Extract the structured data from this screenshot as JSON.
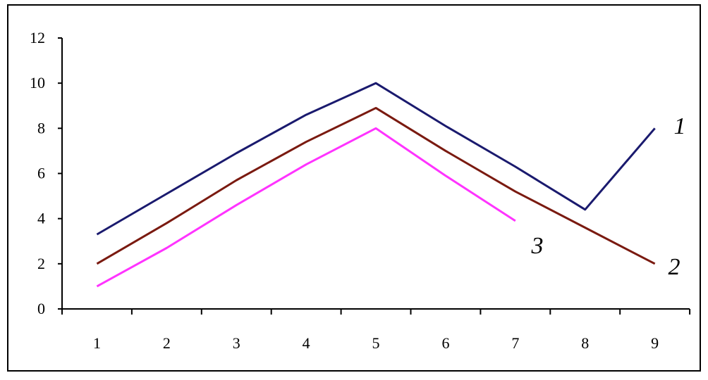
{
  "chart_data": {
    "type": "line",
    "x": [
      1,
      2,
      3,
      4,
      5,
      6,
      7,
      8,
      9
    ],
    "x_tick_labels": [
      "1",
      "2",
      "3",
      "4",
      "5",
      "6",
      "7",
      "8",
      "9"
    ],
    "y_tick_labels": [
      "0",
      "2",
      "4",
      "6",
      "8",
      "10",
      "12"
    ],
    "ylim": [
      0,
      12
    ],
    "grid": false,
    "series": [
      {
        "name": "1",
        "color": "#1a1a6e",
        "values": [
          3.3,
          5.1,
          6.9,
          8.6,
          10.0,
          8.1,
          6.3,
          4.4,
          8.0
        ]
      },
      {
        "name": "2",
        "color": "#7a1a10",
        "values": [
          2.0,
          3.8,
          5.7,
          7.4,
          8.9,
          7.0,
          5.2,
          3.6,
          2.0
        ]
      },
      {
        "name": "3",
        "color": "#ff33ff",
        "values": [
          1.0,
          2.7,
          4.6,
          6.4,
          8.0,
          5.9,
          3.9,
          null,
          null
        ]
      }
    ]
  }
}
